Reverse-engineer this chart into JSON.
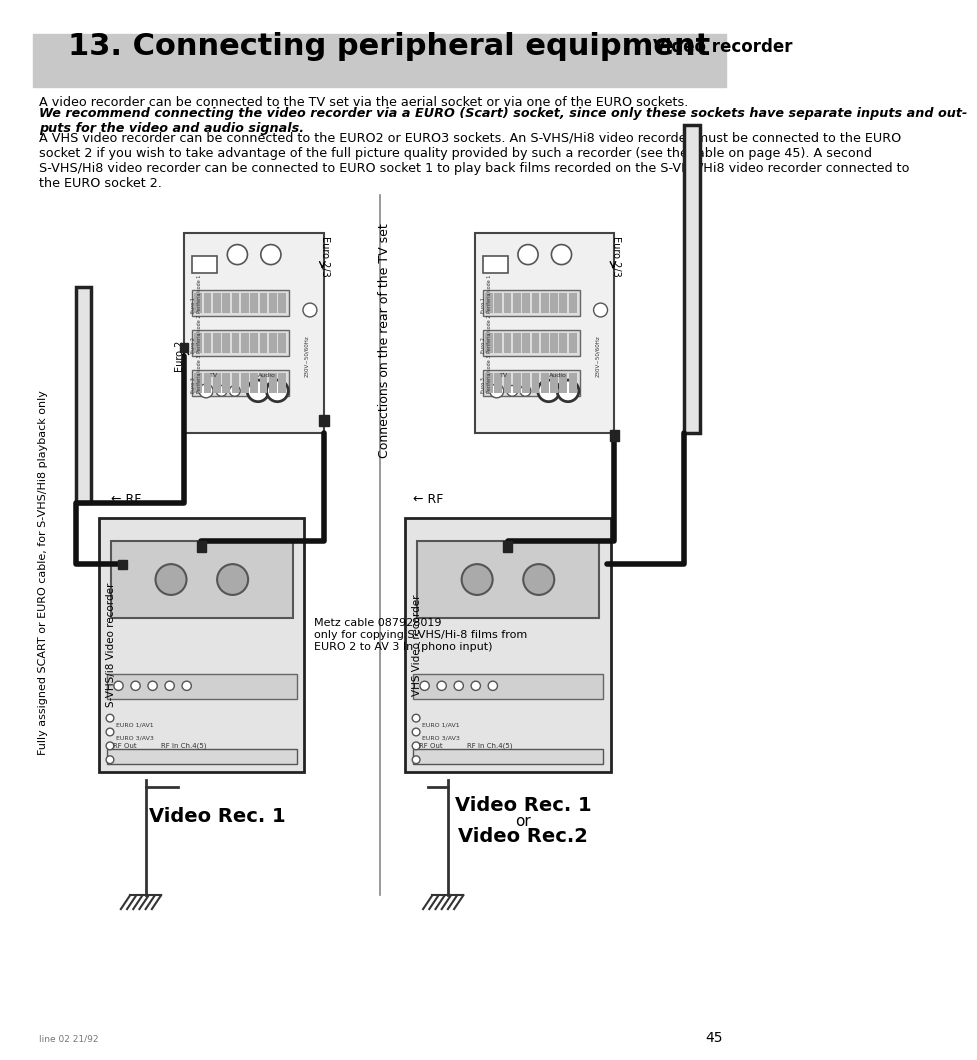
{
  "title_main": "13. Connecting peripheral equipment",
  "title_sub": "Video recorder",
  "header_bg": "#c8c8c8",
  "page_number": "45",
  "body_text_1": "A video recorder can be connected to the TV set via the aerial socket or via one of the EURO sockets.",
  "body_text_2_bold_italic": "We recommend connecting the video recorder via a EURO (Scart) socket, since only these sockets have separate inputs and out-\nputs for the video and audio signals.",
  "body_text_3": "A VHS video recorder can be connected to the EURO2 or EURO3 sockets. An S-VHS/Hi8 video recorder must be connected to the EURO\nsocket 2 if you wish to take advantage of the full picture quality provided by such a recorder (see the table on page 45). A second\nS-VHS/Hi8 video recorder can be connected to EURO socket 1 to play back films recorded on the S-VHS/Hi8 video recorder connected to\nthe EURO socket 2.",
  "sidebar_text": "Fully assigned SCART or EURO cable, for S-VHS/Hi8 playback only",
  "connections_text": "Connections on the rear of the TV set",
  "left_vcr_label": "S-VHS/i8 Video recorder",
  "left_caption": "Metz cable 087928019\nonly for copying S-VHS/Hi-8 films from\nEURO 2 to AV 3 In (phono input)",
  "left_footer": "Video Rec. 1",
  "right_vcr_label": "VHS Video recorder",
  "right_footer1": "Video Rec. 1",
  "right_footer2": "or",
  "right_footer3": "Video Rec.2",
  "small_text": "line 02 21/92",
  "bg_color": "#ffffff",
  "text_color": "#000000",
  "header_text_color": "#000000",
  "gray_fill": "#e8e8e8",
  "dark_line": "#222222"
}
